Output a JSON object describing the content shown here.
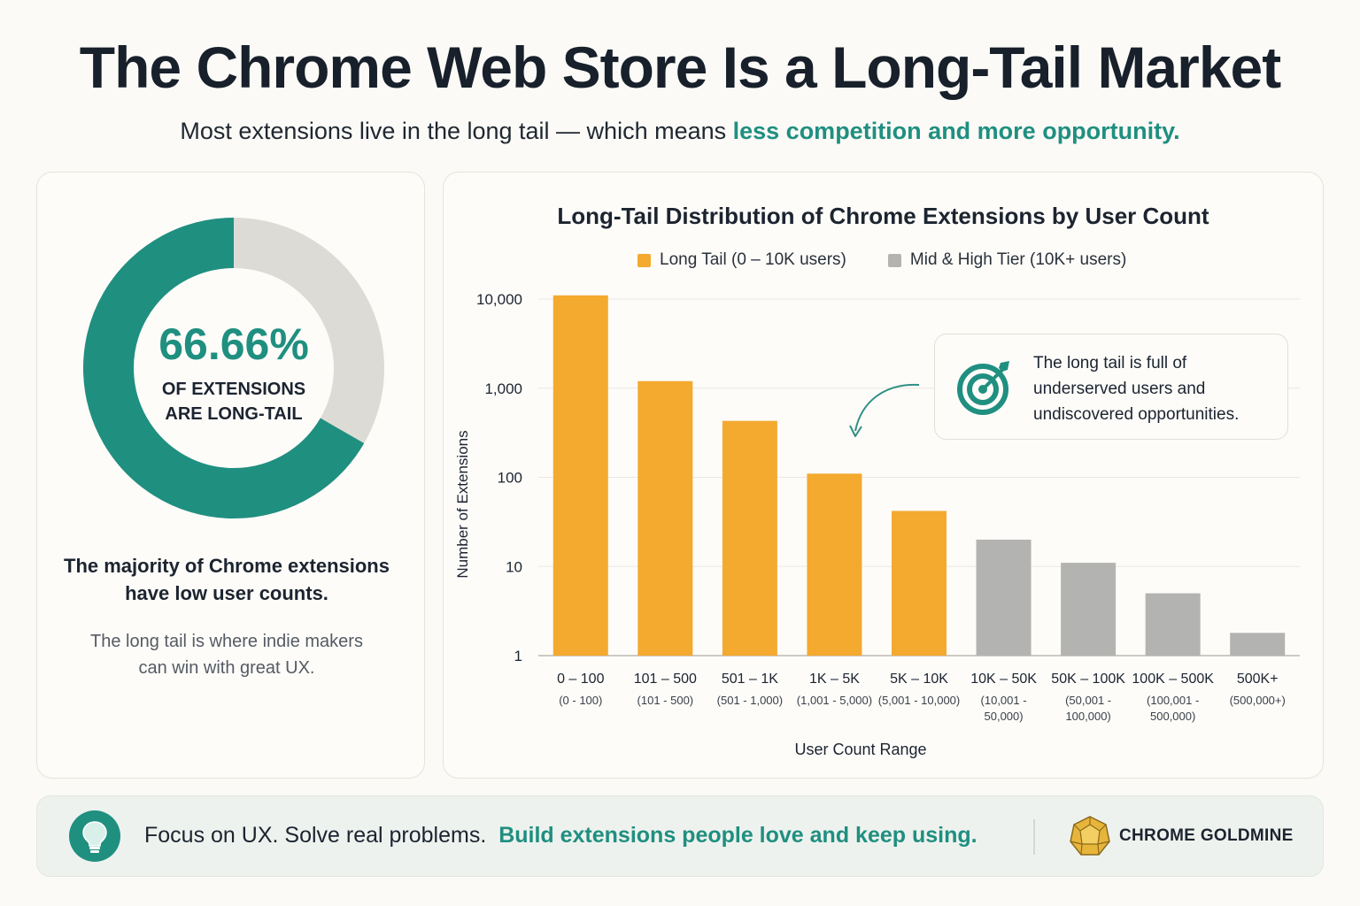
{
  "header": {
    "title": "The Chrome Web Store Is a Long-Tail Market",
    "subtitle_plain": "Most extensions live in the long tail — which means ",
    "subtitle_accent": "less competition and more opportunity."
  },
  "summary_card": {
    "percent_label": "66.66%",
    "percent_value": 66.66,
    "caption_line1": "OF EXTENSIONS",
    "caption_line2": "ARE LONG-TAIL",
    "headline_line1": "The majority of Chrome extensions",
    "headline_line2": "have low user counts.",
    "note_line1": "The long tail is where indie makers",
    "note_line2": "can win with great UX.",
    "colors": {
      "accent": "#1f8f80",
      "remainder": "#dddbd5"
    }
  },
  "callout": {
    "line1": "The long tail is full of",
    "line2": "underserved users and",
    "line3": "undiscovered opportunities.",
    "icon": "target-icon"
  },
  "footer": {
    "text_plain": "Focus on UX. Solve real problems.",
    "text_accent": "Build extensions people love and keep using.",
    "brand": "CHROME GOLDMINE",
    "icons": [
      "lightbulb-icon",
      "gem-icon"
    ]
  },
  "colors": {
    "accent": "#1f8f80",
    "long_tail": "#f4a92f",
    "mid_high": "#b3b3b1"
  },
  "chart_data": {
    "type": "bar",
    "title": "Long-Tail Distribution of Chrome Extensions by User Count",
    "xlabel": "User Count Range",
    "ylabel": "Number of Extensions",
    "yscale": "log",
    "ylim": [
      1,
      10000
    ],
    "yticks": [
      1,
      10,
      100,
      1000,
      10000
    ],
    "ytick_labels": [
      "1",
      "10",
      "100",
      "1,000",
      "10,000"
    ],
    "grid": true,
    "legend_position": "top",
    "categories": [
      "0 – 100",
      "101 – 500",
      "501 – 1K",
      "1K – 5K",
      "5K – 10K",
      "10K – 50K",
      "50K – 100K",
      "100K – 500K",
      "500K+"
    ],
    "category_sublabels": [
      [
        "(0 - 100)"
      ],
      [
        "(101 - 500)"
      ],
      [
        "(501 - 1,000)"
      ],
      [
        "(1,001 - 5,000)"
      ],
      [
        "(5,001 - 10,000)"
      ],
      [
        "(10,001 -",
        "50,000)"
      ],
      [
        "(50,001 -",
        "100,000)"
      ],
      [
        "(100,001 -",
        "500,000)"
      ],
      [
        "(500,000+)"
      ]
    ],
    "values": [
      11000,
      1200,
      430,
      110,
      42,
      20,
      11,
      5,
      1.8
    ],
    "groups": [
      "long_tail",
      "long_tail",
      "long_tail",
      "long_tail",
      "long_tail",
      "mid_high",
      "mid_high",
      "mid_high",
      "mid_high"
    ],
    "series": [
      {
        "name": "Long Tail (0 – 10K users)",
        "key": "long_tail",
        "color": "#f4a92f"
      },
      {
        "name": "Mid & High Tier (10K+ users)",
        "key": "mid_high",
        "color": "#b3b3b1"
      }
    ]
  }
}
